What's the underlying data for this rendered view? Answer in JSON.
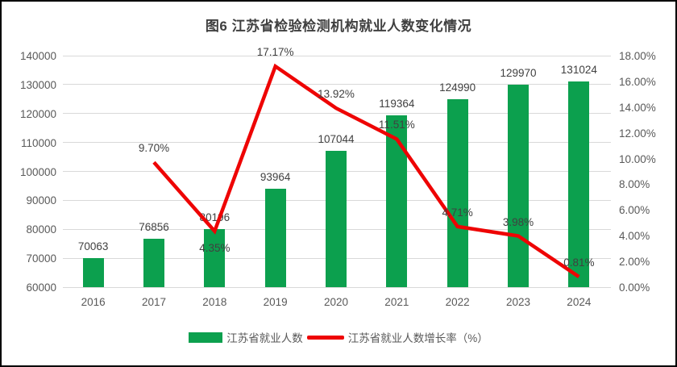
{
  "frame": {
    "border_color": "#000000",
    "background": "#ffffff"
  },
  "chart_data": {
    "type": "bar+line",
    "title": "图6  江苏省检验检测机构就业人数变化情况",
    "categories": [
      "2016",
      "2017",
      "2018",
      "2019",
      "2020",
      "2021",
      "2022",
      "2023",
      "2024"
    ],
    "series": [
      {
        "name": "江苏省就业人数",
        "type": "bar",
        "axis": "left",
        "color": "#0ca04e",
        "values": [
          70063,
          76856,
          80196,
          93964,
          107044,
          119364,
          124990,
          129970,
          131024
        ],
        "labels": [
          "70063",
          "76856",
          "80196",
          "93964",
          "107044",
          "119364",
          "124990",
          "129970",
          "131024"
        ]
      },
      {
        "name": "江苏省就业人数增长率（%）",
        "type": "line",
        "axis": "right",
        "color": "#ee0404",
        "values": [
          null,
          9.7,
          4.35,
          17.17,
          13.92,
          11.51,
          4.71,
          3.98,
          0.81
        ],
        "labels": [
          null,
          "9.70%",
          "4.35%",
          "17.17%",
          "13.92%",
          "11.51%",
          "4.71%",
          "3.98%",
          "0.81%"
        ]
      }
    ],
    "left_axis": {
      "min": 60000,
      "max": 140000,
      "step": 10000,
      "tick_labels": [
        "60000",
        "70000",
        "80000",
        "90000",
        "100000",
        "110000",
        "120000",
        "130000",
        "140000"
      ]
    },
    "right_axis": {
      "min": 0,
      "max": 18,
      "step": 2,
      "tick_labels": [
        "0.00%",
        "2.00%",
        "4.00%",
        "6.00%",
        "8.00%",
        "10.00%",
        "12.00%",
        "14.00%",
        "16.00%",
        "18.00%"
      ]
    },
    "grid": true,
    "gridline_color": "#d9d9d9",
    "legend_position": "bottom",
    "axis_text_color": "#595959",
    "data_label_color": "#404040"
  }
}
